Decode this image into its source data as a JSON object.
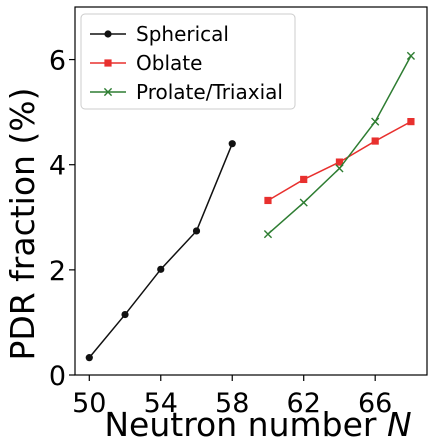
{
  "chart_data": {
    "type": "line",
    "xlabel": "Neutron number ",
    "xlabel_italic": "N",
    "ylabel": "PDR fraction (%)",
    "xlim": [
      49.2,
      68.9
    ],
    "ylim": [
      0,
      7.0
    ],
    "x_ticks": [
      50,
      54,
      58,
      62,
      66
    ],
    "y_ticks": [
      0,
      2,
      4,
      6
    ],
    "legend_placement": "top-left",
    "grid": false,
    "series": [
      {
        "name": "Spherical",
        "color": "#111111",
        "marker": "dot",
        "x": [
          50,
          52,
          54,
          56,
          58
        ],
        "y": [
          0.33,
          1.15,
          2.01,
          2.74,
          4.4
        ]
      },
      {
        "name": "Oblate",
        "color": "#e8302e",
        "marker": "square",
        "x": [
          60,
          62,
          64,
          66,
          68
        ],
        "y": [
          3.32,
          3.72,
          4.05,
          4.45,
          4.82
        ]
      },
      {
        "name": "Prolate/Triaxial",
        "color": "#2e7d32",
        "marker": "x",
        "x": [
          60,
          62,
          64,
          66,
          68
        ],
        "y": [
          2.68,
          3.28,
          3.93,
          4.82,
          6.07
        ]
      }
    ]
  }
}
